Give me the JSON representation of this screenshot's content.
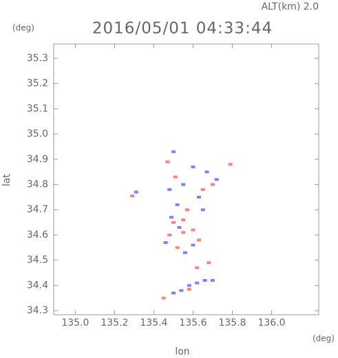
{
  "chart_data": {
    "type": "scatter",
    "title": "2016/05/01 04:33:44",
    "annotation": "ALT(km) 2.0",
    "y_unit": "(deg)",
    "x_unit": "(deg)",
    "x_label": "lon",
    "y_label": "lat",
    "xlim": [
      134.89,
      136.24
    ],
    "ylim": [
      34.284,
      35.357
    ],
    "xticks": [
      {
        "value": 135,
        "label": "135.0"
      },
      135.2,
      135.4,
      135.6,
      135.8,
      {
        "value": 136,
        "label": "136.0"
      }
    ],
    "yticks": [
      34.3,
      34.4,
      34.5,
      34.6,
      34.7,
      34.8,
      34.9,
      {
        "value": 35,
        "label": "35.0"
      },
      35.1,
      35.2,
      35.3
    ],
    "series": [
      {
        "color": "#ff8080",
        "x": [
          135.29,
          135.45,
          135.58,
          135.79,
          135.47,
          135.5,
          135.55,
          135.52,
          135.6,
          135.57,
          135.65,
          135.51,
          135.62,
          135.68,
          135.55,
          135.48,
          135.63,
          135.7
        ],
        "values": [
          34.755,
          34.35,
          34.385,
          34.88,
          34.89,
          34.65,
          34.61,
          34.55,
          34.62,
          34.7,
          34.78,
          34.83,
          34.47,
          34.49,
          34.66,
          34.6,
          34.58,
          34.8
        ]
      },
      {
        "color": "#8080ff",
        "x": [
          135.31,
          135.5,
          135.48,
          135.55,
          135.6,
          135.67,
          135.72,
          135.49,
          135.53,
          135.56,
          135.6,
          135.65,
          135.58,
          135.62,
          135.66,
          135.5,
          135.54,
          135.7,
          135.63,
          135.52,
          135.46
        ],
        "values": [
          34.77,
          34.93,
          34.78,
          34.8,
          34.87,
          34.85,
          34.82,
          34.67,
          34.63,
          34.53,
          34.56,
          34.7,
          34.4,
          34.41,
          34.42,
          34.37,
          34.38,
          34.42,
          34.75,
          34.72,
          34.57
        ]
      }
    ]
  }
}
